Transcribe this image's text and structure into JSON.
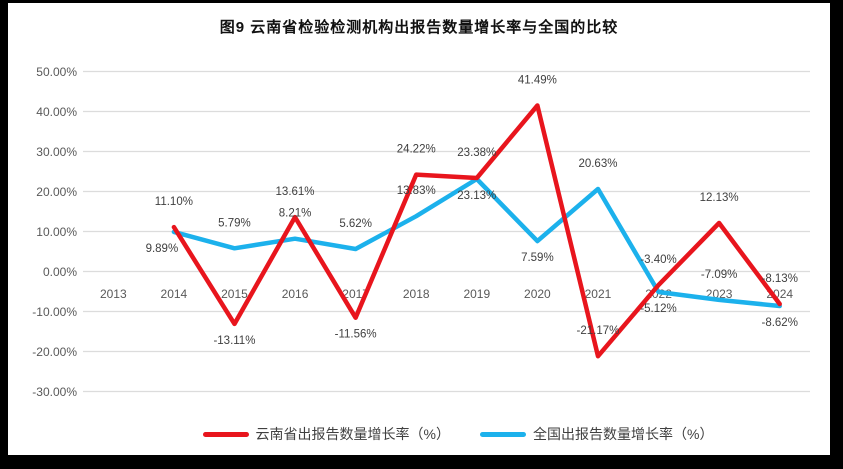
{
  "window": {
    "background_color": "#000000",
    "panel_color": "#ffffff"
  },
  "chart_data": {
    "type": "line",
    "title": "图9 云南省检验检测机构出报告数量增长率与全国的比较",
    "categories": [
      "2013",
      "2014",
      "2015",
      "2016",
      "2017",
      "2018",
      "2019",
      "2020",
      "2021",
      "2022",
      "2023",
      "2024"
    ],
    "y_axis": {
      "min": -30,
      "max": 50,
      "step": 10,
      "tick_labels": [
        "50.00%",
        "40.00%",
        "30.00%",
        "20.00%",
        "10.00%",
        "0.00%",
        "-10.00%",
        "-20.00%",
        "-30.00%"
      ]
    },
    "grid": true,
    "legend_position": "bottom",
    "series": [
      {
        "name": "云南省出报告数量增长率（%）",
        "color": "#e8151d",
        "values": [
          null,
          11.1,
          -13.11,
          13.61,
          -11.56,
          24.22,
          23.38,
          41.49,
          -21.17,
          -3.4,
          12.13,
          -8.13
        ],
        "labels": [
          null,
          "11.10%",
          "-13.11%",
          "13.61%",
          "-11.56%",
          "24.22%",
          "23.38%",
          "41.49%",
          "-21.17%",
          "-3.40%",
          "12.13%",
          "-8.13%"
        ],
        "label_side": [
          null,
          "above",
          "below",
          "above",
          "below",
          "above",
          "above",
          "above",
          "above",
          "above",
          "above",
          "above"
        ],
        "label_dx_overrides": {}
      },
      {
        "name": "全国出报告数量增长率（%）",
        "color": "#1cb1ec",
        "values": [
          null,
          9.89,
          5.79,
          8.21,
          5.62,
          13.83,
          23.13,
          7.59,
          20.63,
          -5.12,
          -7.09,
          -8.62
        ],
        "labels": [
          null,
          "9.89%",
          "5.79%",
          "8.21%",
          "5.62%",
          "13.83%",
          "23.13%",
          "7.59%",
          "20.63%",
          "-5.12%",
          "-7.09%",
          "-8.62%"
        ],
        "label_side": [
          null,
          "below",
          "above",
          "above",
          "above",
          "above",
          "below",
          "below",
          "above",
          "below",
          "above",
          "below"
        ],
        "label_dx_overrides": {
          "1": -12
        }
      }
    ],
    "style": {
      "axis_text_color": "#595959",
      "data_label_color": "#404040",
      "gridline_color": "#dcdcdc",
      "line_width": 4.5
    }
  }
}
